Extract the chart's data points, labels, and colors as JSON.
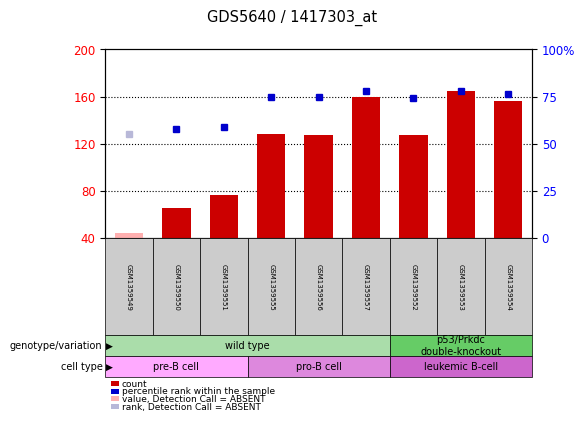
{
  "title": "GDS5640 / 1417303_at",
  "samples": [
    "GSM1359549",
    "GSM1359550",
    "GSM1359551",
    "GSM1359555",
    "GSM1359556",
    "GSM1359557",
    "GSM1359552",
    "GSM1359553",
    "GSM1359554"
  ],
  "bar_values": [
    44,
    65,
    76,
    128,
    127,
    160,
    127,
    165,
    156
  ],
  "bar_absent": [
    true,
    false,
    false,
    false,
    false,
    false,
    false,
    false,
    false
  ],
  "rank_values": [
    128,
    132,
    134,
    160,
    160,
    165,
    159,
    165,
    162
  ],
  "rank_absent": [
    true,
    false,
    false,
    false,
    false,
    false,
    false,
    false,
    false
  ],
  "ylim_left": [
    40,
    200
  ],
  "ylim_right": [
    0,
    100
  ],
  "yticks_left": [
    40,
    80,
    120,
    160,
    200
  ],
  "yticks_right": [
    0,
    25,
    50,
    75,
    100
  ],
  "ytick_labels_right": [
    "0",
    "25",
    "50",
    "75",
    "100%"
  ],
  "bar_color": "#cc0000",
  "bar_absent_color": "#ffb0b0",
  "rank_color": "#0000cc",
  "rank_absent_color": "#b8b8d8",
  "bg_color": "#ffffff",
  "genotype_groups": [
    {
      "text": "wild type",
      "span": [
        0,
        6
      ],
      "color": "#aaddaa"
    },
    {
      "text": "p53/Prkdc\ndouble-knockout",
      "span": [
        6,
        9
      ],
      "color": "#66cc66"
    }
  ],
  "celltype_groups": [
    {
      "text": "pre-B cell",
      "span": [
        0,
        3
      ],
      "color": "#ffaaff"
    },
    {
      "text": "pro-B cell",
      "span": [
        3,
        6
      ],
      "color": "#dd88dd"
    },
    {
      "text": "leukemic B-cell",
      "span": [
        6,
        9
      ],
      "color": "#cc66cc"
    }
  ],
  "legend_labels": [
    "count",
    "percentile rank within the sample",
    "value, Detection Call = ABSENT",
    "rank, Detection Call = ABSENT"
  ],
  "legend_colors": [
    "#cc0000",
    "#0000cc",
    "#ffb0b0",
    "#b8b8d8"
  ]
}
